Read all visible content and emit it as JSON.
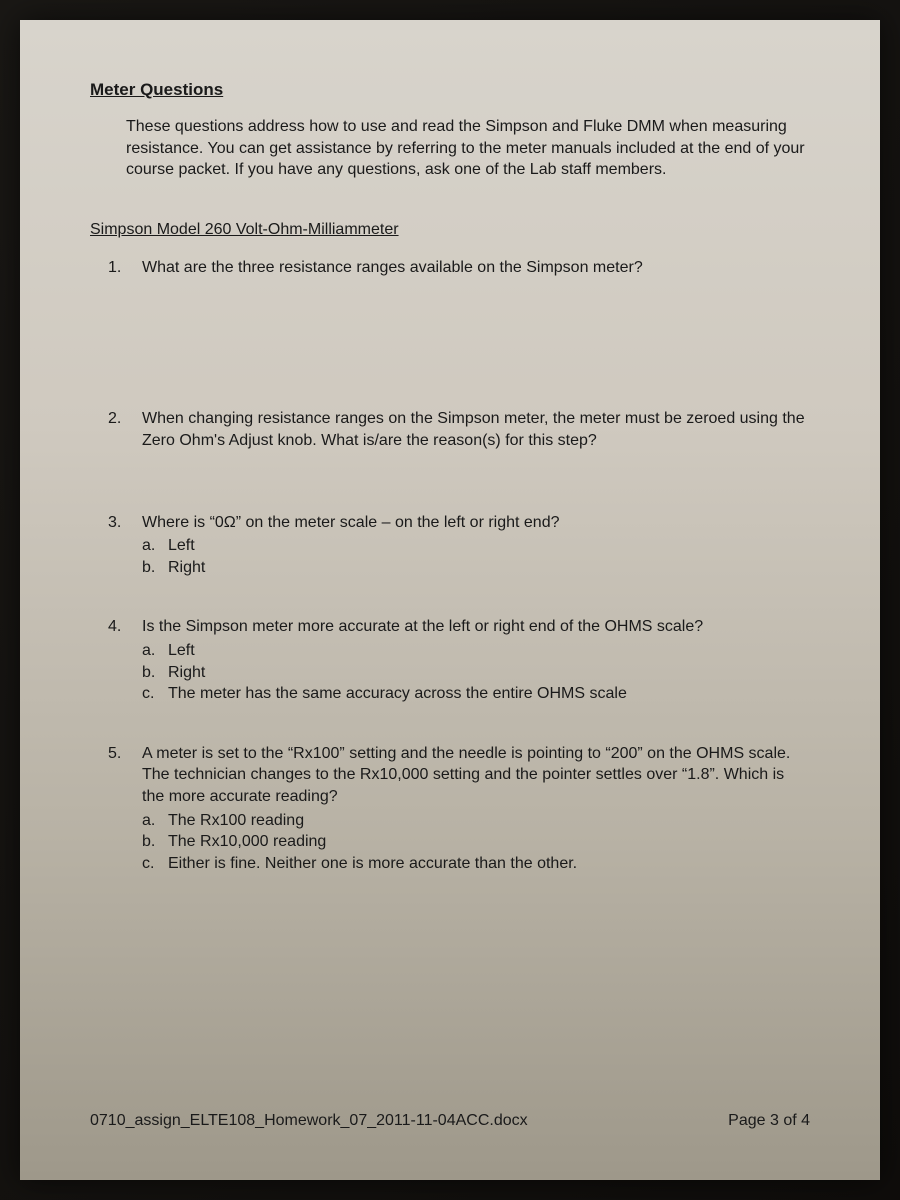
{
  "title": "Meter Questions",
  "intro": "These questions address how to use and read the Simpson and Fluke DMM when measuring resistance.  You can get assistance by referring to the meter manuals included at the end of your course packet.  If you have any questions, ask one of the Lab staff members.",
  "section": "Simpson Model 260 Volt-Ohm-Milliammeter",
  "questions": [
    {
      "num": "1.",
      "text": "What are the three resistance ranges available on the Simpson meter?"
    },
    {
      "num": "2.",
      "text": "When changing resistance ranges on the Simpson meter, the meter must be zeroed using the Zero Ohm's Adjust knob.  What is/are the reason(s) for this step?"
    },
    {
      "num": "3.",
      "text": "Where is “0Ω” on the meter scale – on the left or right end?",
      "options": [
        {
          "letter": "a.",
          "text": "Left"
        },
        {
          "letter": "b.",
          "text": "Right"
        }
      ]
    },
    {
      "num": "4.",
      "text": "Is the Simpson meter more accurate at the left or right end of the OHMS scale?",
      "options": [
        {
          "letter": "a.",
          "text": "Left"
        },
        {
          "letter": "b.",
          "text": "Right"
        },
        {
          "letter": "c.",
          "text": "The meter has the same accuracy across the entire OHMS scale"
        }
      ]
    },
    {
      "num": "5.",
      "text": "A meter is set to the “Rx100” setting and the needle is pointing to “200” on the OHMS scale.  The technician changes to the Rx10,000 setting and the pointer settles over “1.8”.  Which is the more accurate reading?",
      "options": [
        {
          "letter": "a.",
          "text": "The Rx100 reading"
        },
        {
          "letter": "b.",
          "text": "The Rx10,000 reading"
        },
        {
          "letter": "c.",
          "text": "Either is fine.  Neither one is more accurate than the other."
        }
      ]
    }
  ],
  "footer": {
    "filename": "0710_assign_ELTE108_Homework_07_2011-11-04ACC.docx",
    "page": "Page 3 of 4"
  },
  "colors": {
    "text": "#1a1a1a",
    "paper_top": "#d8d4cc",
    "paper_bottom": "#9e988a",
    "background": "#0f0d0b"
  },
  "typography": {
    "body_fontsize": 16,
    "title_fontsize": 17,
    "font_family": "Arial"
  }
}
